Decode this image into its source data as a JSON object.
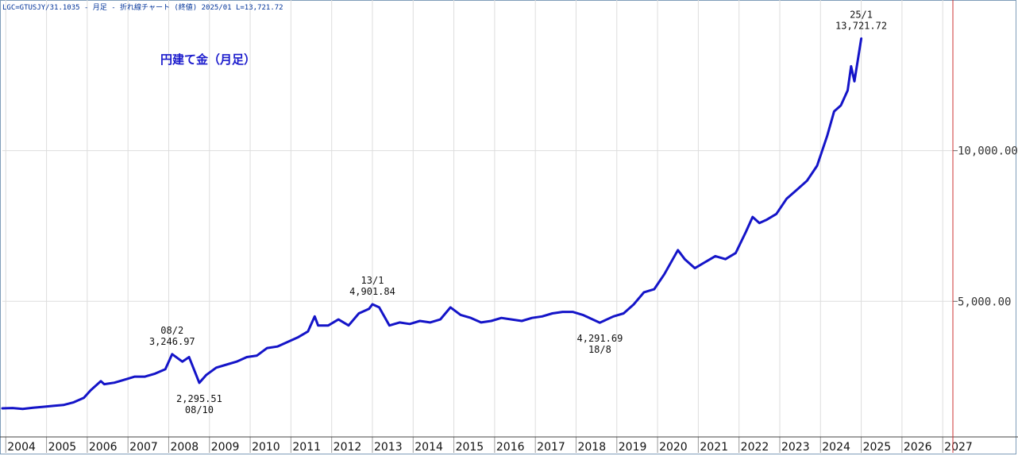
{
  "header_text": "LGC=GTUSJY/31.1035 - 月足 - 折れ線チャート (終値) 2025/01 L=13,721.72",
  "title": "円建て金（月足）",
  "colors": {
    "line": "#1414c8",
    "grid": "#dddddd",
    "right_border": "#cc3333",
    "text": "#111111"
  },
  "chart_data": {
    "type": "line",
    "title": "円建て金（月足）",
    "xlabel": "",
    "ylabel": "",
    "x_tick_labels": [
      "2004",
      "2005",
      "2006",
      "2007",
      "2008",
      "2009",
      "2010",
      "2011",
      "2012",
      "2013",
      "2014",
      "2015",
      "2016",
      "2017",
      "2018",
      "2019",
      "2020",
      "2021",
      "2022",
      "2023",
      "2024",
      "2025",
      "2026",
      "2027"
    ],
    "y_ticks": [
      5000,
      10000
    ],
    "y_tick_labels": [
      "5,000.00",
      "10,000.00"
    ],
    "ylim": [
      500,
      15000
    ],
    "xlim": [
      "2003-12",
      "2027-04"
    ],
    "grid": true,
    "series": [
      {
        "name": "",
        "points": [
          [
            "2003-12",
            1450
          ],
          [
            "2004-03",
            1460
          ],
          [
            "2004-06",
            1430
          ],
          [
            "2004-09",
            1470
          ],
          [
            "2004-12",
            1500
          ],
          [
            "2005-03",
            1530
          ],
          [
            "2005-06",
            1560
          ],
          [
            "2005-09",
            1650
          ],
          [
            "2005-12",
            1800
          ],
          [
            "2006-02",
            2050
          ],
          [
            "2006-05",
            2350
          ],
          [
            "2006-06",
            2250
          ],
          [
            "2006-09",
            2300
          ],
          [
            "2006-12",
            2400
          ],
          [
            "2007-03",
            2500
          ],
          [
            "2007-06",
            2500
          ],
          [
            "2007-09",
            2600
          ],
          [
            "2007-12",
            2750
          ],
          [
            "2008-02",
            3246.97
          ],
          [
            "2008-05",
            3000
          ],
          [
            "2008-07",
            3150
          ],
          [
            "2008-10",
            2295.51
          ],
          [
            "2008-12",
            2550
          ],
          [
            "2009-03",
            2800
          ],
          [
            "2009-06",
            2900
          ],
          [
            "2009-09",
            3000
          ],
          [
            "2009-12",
            3150
          ],
          [
            "2010-03",
            3200
          ],
          [
            "2010-06",
            3450
          ],
          [
            "2010-09",
            3500
          ],
          [
            "2010-12",
            3650
          ],
          [
            "2011-03",
            3800
          ],
          [
            "2011-06",
            4000
          ],
          [
            "2011-08",
            4500
          ],
          [
            "2011-09",
            4200
          ],
          [
            "2011-12",
            4200
          ],
          [
            "2012-03",
            4400
          ],
          [
            "2012-06",
            4200
          ],
          [
            "2012-09",
            4600
          ],
          [
            "2012-12",
            4750
          ],
          [
            "2013-01",
            4901.84
          ],
          [
            "2013-03",
            4800
          ],
          [
            "2013-06",
            4200
          ],
          [
            "2013-09",
            4300
          ],
          [
            "2013-12",
            4250
          ],
          [
            "2014-03",
            4350
          ],
          [
            "2014-06",
            4300
          ],
          [
            "2014-09",
            4400
          ],
          [
            "2014-12",
            4800
          ],
          [
            "2015-03",
            4550
          ],
          [
            "2015-06",
            4450
          ],
          [
            "2015-09",
            4300
          ],
          [
            "2015-12",
            4350
          ],
          [
            "2016-03",
            4450
          ],
          [
            "2016-06",
            4400
          ],
          [
            "2016-09",
            4350
          ],
          [
            "2016-12",
            4450
          ],
          [
            "2017-03",
            4500
          ],
          [
            "2017-06",
            4600
          ],
          [
            "2017-09",
            4650
          ],
          [
            "2017-12",
            4650
          ],
          [
            "2018-03",
            4550
          ],
          [
            "2018-08",
            4291.69
          ],
          [
            "2018-12",
            4500
          ],
          [
            "2019-03",
            4600
          ],
          [
            "2019-06",
            4900
          ],
          [
            "2019-09",
            5300
          ],
          [
            "2019-12",
            5400
          ],
          [
            "2020-03",
            5900
          ],
          [
            "2020-07",
            6700
          ],
          [
            "2020-09",
            6400
          ],
          [
            "2020-12",
            6100
          ],
          [
            "2021-03",
            6300
          ],
          [
            "2021-06",
            6500
          ],
          [
            "2021-09",
            6400
          ],
          [
            "2021-12",
            6600
          ],
          [
            "2022-03",
            7300
          ],
          [
            "2022-05",
            7800
          ],
          [
            "2022-07",
            7600
          ],
          [
            "2022-09",
            7700
          ],
          [
            "2022-12",
            7900
          ],
          [
            "2023-03",
            8400
          ],
          [
            "2023-06",
            8700
          ],
          [
            "2023-09",
            9000
          ],
          [
            "2023-12",
            9500
          ],
          [
            "2024-03",
            10500
          ],
          [
            "2024-05",
            11300
          ],
          [
            "2024-07",
            11500
          ],
          [
            "2024-09",
            12000
          ],
          [
            "2024-10",
            12800
          ],
          [
            "2024-11",
            12300
          ],
          [
            "2025-01",
            13721.72
          ]
        ]
      }
    ],
    "annotations": [
      {
        "date": "2008-02",
        "value": 3246.97,
        "label_top": "08/2",
        "label_bottom": "3,246.97",
        "position": "above"
      },
      {
        "date": "2008-10",
        "value": 2295.51,
        "label_top": "2,295.51",
        "label_bottom": "08/10",
        "position": "below"
      },
      {
        "date": "2013-01",
        "value": 4901.84,
        "label_top": "13/1",
        "label_bottom": "4,901.84",
        "position": "above"
      },
      {
        "date": "2018-08",
        "value": 4291.69,
        "label_top": "4,291.69",
        "label_bottom": "18/8",
        "position": "below"
      },
      {
        "date": "2025-01",
        "value": 13721.72,
        "label_top": "25/1",
        "label_bottom": "13,721.72",
        "position": "above"
      }
    ]
  }
}
